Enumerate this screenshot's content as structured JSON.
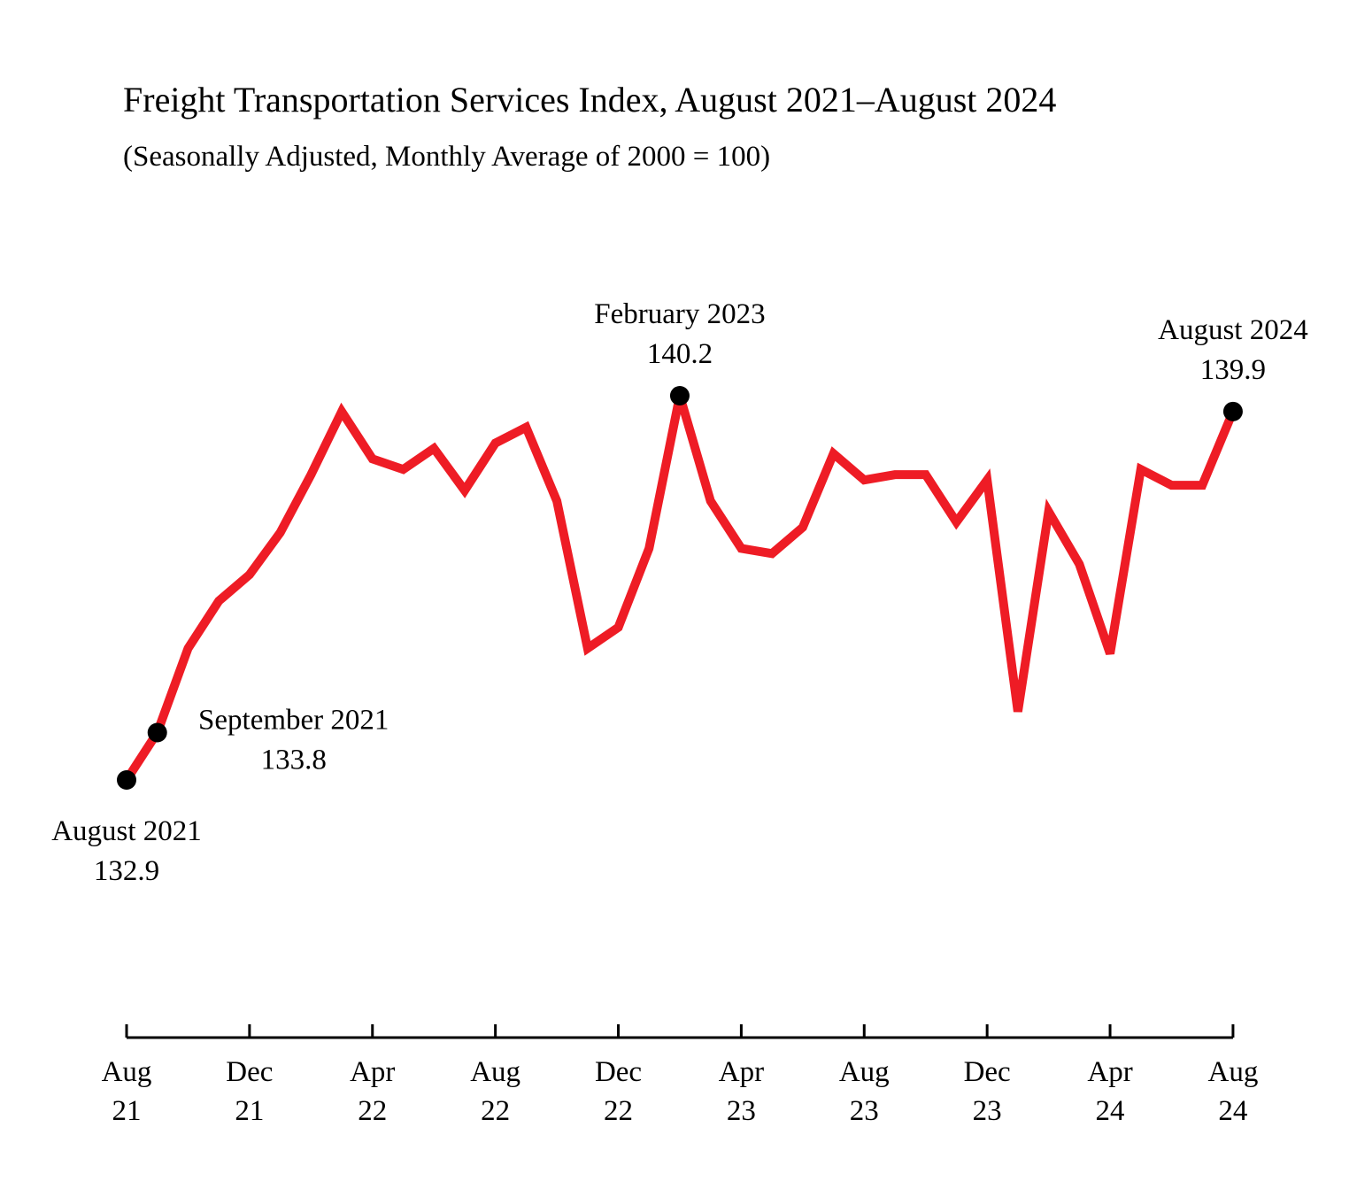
{
  "chart_data": {
    "type": "line",
    "title": "Freight Transportation Services Index, August 2021–August 2024",
    "subtitle": "(Seasonally Adjusted, Monthly Average of 2000 = 100)",
    "xlabel": "",
    "ylabel": "",
    "grid": false,
    "line_color": "#ee1c25",
    "marker_color": "#000000",
    "x": [
      "2021-08",
      "2021-09",
      "2021-10",
      "2021-11",
      "2021-12",
      "2022-01",
      "2022-02",
      "2022-03",
      "2022-04",
      "2022-05",
      "2022-06",
      "2022-07",
      "2022-08",
      "2022-09",
      "2022-10",
      "2022-11",
      "2022-12",
      "2023-01",
      "2023-02",
      "2023-03",
      "2023-04",
      "2023-05",
      "2023-06",
      "2023-07",
      "2023-08",
      "2023-09",
      "2023-10",
      "2023-11",
      "2023-12",
      "2024-01",
      "2024-02",
      "2024-03",
      "2024-04",
      "2024-05",
      "2024-06",
      "2024-07",
      "2024-08"
    ],
    "values": [
      132.9,
      133.8,
      135.4,
      136.3,
      136.8,
      137.6,
      138.7,
      139.9,
      139.0,
      138.8,
      139.2,
      138.4,
      139.3,
      139.6,
      138.2,
      135.4,
      135.8,
      137.3,
      140.2,
      138.2,
      137.3,
      137.2,
      137.7,
      139.1,
      138.6,
      138.7,
      138.7,
      137.8,
      138.6,
      134.2,
      138.0,
      137.0,
      135.3,
      138.8,
      138.5,
      138.5,
      139.9
    ],
    "ticks": [
      {
        "index": 0,
        "month": "Aug",
        "year": "21"
      },
      {
        "index": 4,
        "month": "Dec",
        "year": "21"
      },
      {
        "index": 8,
        "month": "Apr",
        "year": "22"
      },
      {
        "index": 12,
        "month": "Aug",
        "year": "22"
      },
      {
        "index": 16,
        "month": "Dec",
        "year": "22"
      },
      {
        "index": 20,
        "month": "Apr",
        "year": "23"
      },
      {
        "index": 24,
        "month": "Aug",
        "year": "23"
      },
      {
        "index": 28,
        "month": "Dec",
        "year": "23"
      },
      {
        "index": 32,
        "month": "Apr",
        "year": "24"
      },
      {
        "index": 36,
        "month": "Aug",
        "year": "24"
      }
    ],
    "annotations": [
      {
        "index": 0,
        "label": "August 2021",
        "value": "132.9",
        "position": "below"
      },
      {
        "index": 1,
        "label": "September 2021",
        "value": "133.8",
        "position": "right"
      },
      {
        "index": 18,
        "label": "February 2023",
        "value": "140.2",
        "position": "above"
      },
      {
        "index": 36,
        "label": "August 2024",
        "value": "139.9",
        "position": "above"
      }
    ]
  }
}
